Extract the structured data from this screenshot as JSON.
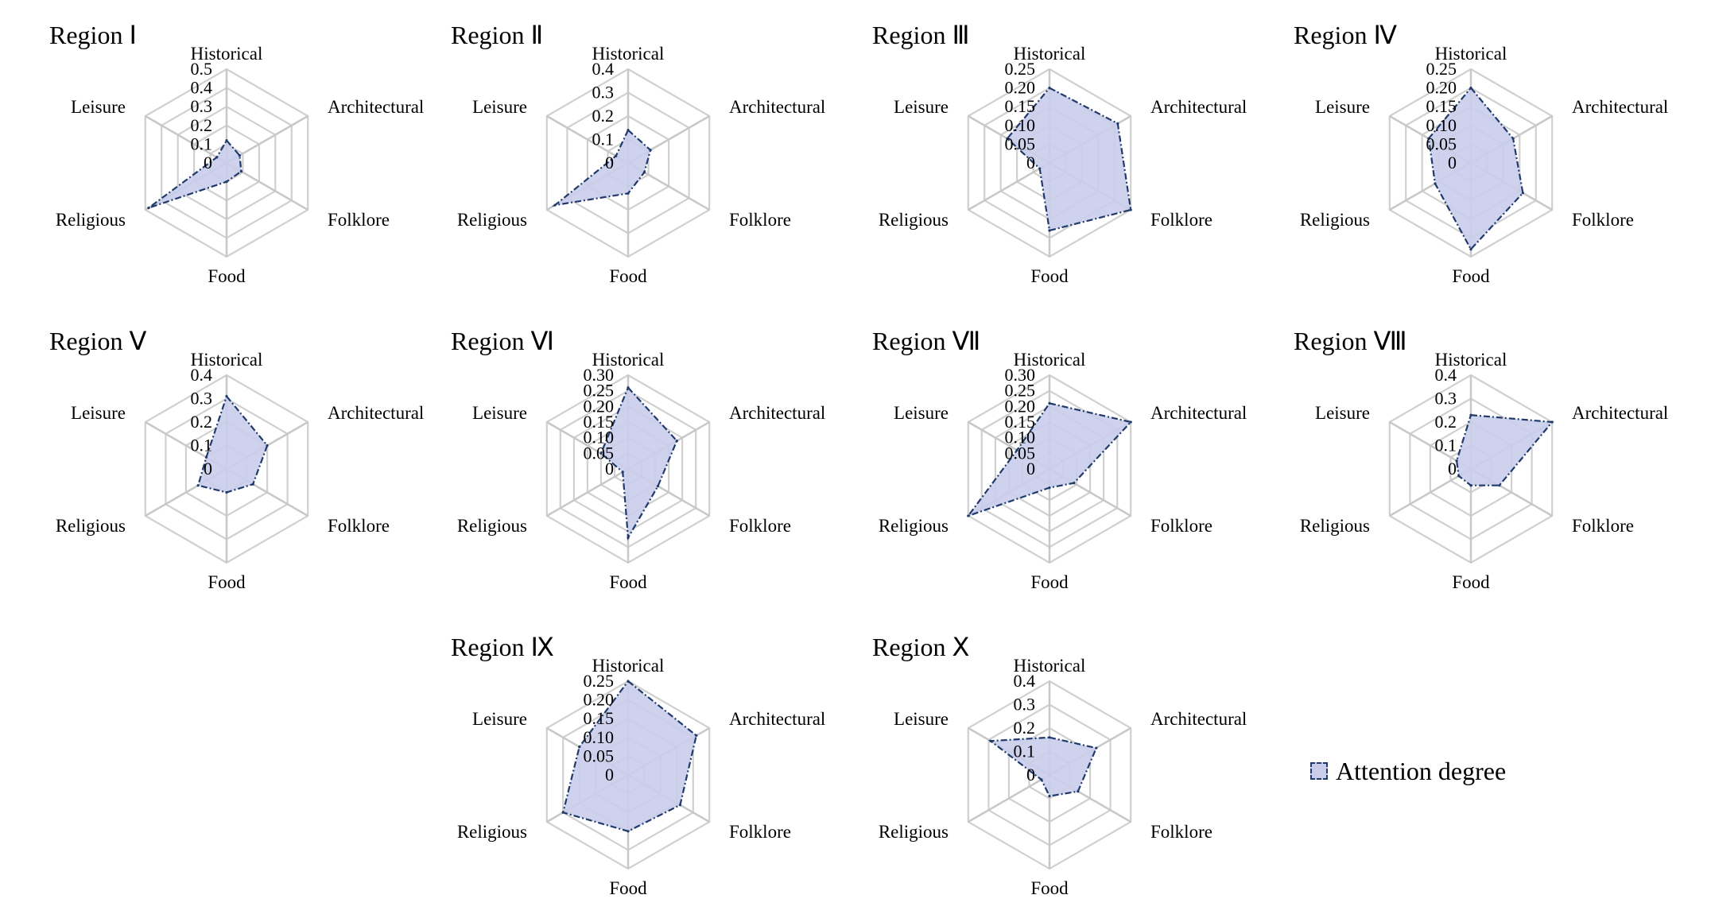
{
  "legend": {
    "label": "Attention degree"
  },
  "colors": {
    "fill": "#c9cdea",
    "stroke": "#1f3a6b",
    "grid": "#d0d0d0",
    "text": "#000000"
  },
  "chart_data": [
    {
      "type": "radar",
      "title": "Region Ⅰ",
      "axes": [
        "Historical",
        "Architectural",
        "Folklore",
        "Food",
        "Religious",
        "Leisure"
      ],
      "ticks": [
        "0",
        "0.1",
        "0.2",
        "0.3",
        "0.4",
        "0.5"
      ],
      "range": [
        0,
        0.5
      ],
      "series": [
        {
          "name": "Attention degree",
          "values": [
            0.12,
            0.08,
            0.09,
            0.1,
            0.48,
            0.06
          ]
        }
      ]
    },
    {
      "type": "radar",
      "title": "Region Ⅱ",
      "axes": [
        "Historical",
        "Architectural",
        "Folklore",
        "Food",
        "Religious",
        "Leisure"
      ],
      "ticks": [
        "0",
        "0.1",
        "0.2",
        "0.3",
        "0.4"
      ],
      "range": [
        0,
        0.4
      ],
      "series": [
        {
          "name": "Attention degree",
          "values": [
            0.14,
            0.11,
            0.08,
            0.13,
            0.36,
            0.06
          ]
        }
      ]
    },
    {
      "type": "radar",
      "title": "Region Ⅲ",
      "axes": [
        "Historical",
        "Architectural",
        "Folklore",
        "Food",
        "Religious",
        "Leisure"
      ],
      "ticks": [
        "0",
        "0.05",
        "0.10",
        "0.15",
        "0.20",
        "0.25"
      ],
      "range": [
        0,
        0.25
      ],
      "series": [
        {
          "name": "Attention degree",
          "values": [
            0.2,
            0.21,
            0.25,
            0.18,
            0.03,
            0.13
          ]
        }
      ]
    },
    {
      "type": "radar",
      "title": "Region Ⅳ",
      "axes": [
        "Historical",
        "Architectural",
        "Folklore",
        "Food",
        "Religious",
        "Leisure"
      ],
      "ticks": [
        "0",
        "0.05",
        "0.10",
        "0.15",
        "0.20",
        "0.25"
      ],
      "range": [
        0,
        0.25
      ],
      "series": [
        {
          "name": "Attention degree",
          "values": [
            0.2,
            0.13,
            0.16,
            0.23,
            0.11,
            0.13
          ]
        }
      ]
    },
    {
      "type": "radar",
      "title": "Region Ⅴ",
      "axes": [
        "Historical",
        "Architectural",
        "Folklore",
        "Food",
        "Religious",
        "Leisure"
      ],
      "ticks": [
        "0",
        "0.1",
        "0.2",
        "0.3",
        "0.4"
      ],
      "range": [
        0,
        0.4
      ],
      "series": [
        {
          "name": "Attention degree",
          "values": [
            0.31,
            0.2,
            0.13,
            0.1,
            0.14,
            0.1
          ]
        }
      ]
    },
    {
      "type": "radar",
      "title": "Region Ⅵ",
      "axes": [
        "Historical",
        "Architectural",
        "Folklore",
        "Food",
        "Religious",
        "Leisure"
      ],
      "ticks": [
        "0",
        "0.05",
        "0.10",
        "0.15",
        "0.20",
        "0.25",
        "0.30"
      ],
      "range": [
        0,
        0.3
      ],
      "series": [
        {
          "name": "Attention degree",
          "values": [
            0.26,
            0.18,
            0.11,
            0.22,
            0.02,
            0.1
          ]
        }
      ]
    },
    {
      "type": "radar",
      "title": "Region Ⅶ",
      "axes": [
        "Historical",
        "Architectural",
        "Folklore",
        "Food",
        "Religious",
        "Leisure"
      ],
      "ticks": [
        "0",
        "0.05",
        "0.10",
        "0.15",
        "0.20",
        "0.25",
        "0.30"
      ],
      "range": [
        0,
        0.3
      ],
      "series": [
        {
          "name": "Attention degree",
          "values": [
            0.21,
            0.3,
            0.09,
            0.06,
            0.3,
            0.12
          ]
        }
      ]
    },
    {
      "type": "radar",
      "title": "Region Ⅷ",
      "axes": [
        "Historical",
        "Architectural",
        "Folklore",
        "Food",
        "Religious",
        "Leisure"
      ],
      "ticks": [
        "0",
        "0.1",
        "0.2",
        "0.3",
        "0.4"
      ],
      "range": [
        0,
        0.4
      ],
      "series": [
        {
          "name": "Attention degree",
          "values": [
            0.23,
            0.4,
            0.14,
            0.07,
            0.06,
            0.07
          ]
        }
      ]
    },
    {
      "type": "radar",
      "title": "Region Ⅸ",
      "axes": [
        "Historical",
        "Architectural",
        "Folklore",
        "Food",
        "Religious",
        "Leisure"
      ],
      "ticks": [
        "0",
        "0.05",
        "0.10",
        "0.15",
        "0.20",
        "0.25"
      ],
      "range": [
        0,
        0.25
      ],
      "series": [
        {
          "name": "Attention degree",
          "values": [
            0.25,
            0.21,
            0.16,
            0.15,
            0.2,
            0.15
          ]
        }
      ]
    },
    {
      "type": "radar",
      "title": "Region Ⅹ",
      "axes": [
        "Historical",
        "Architectural",
        "Folklore",
        "Food",
        "Religious",
        "Leisure"
      ],
      "ticks": [
        "0",
        "0.1",
        "0.2",
        "0.3",
        "0.4"
      ],
      "range": [
        0,
        0.4
      ],
      "series": [
        {
          "name": "Attention degree",
          "values": [
            0.16,
            0.23,
            0.14,
            0.09,
            0.04,
            0.29
          ]
        }
      ]
    }
  ]
}
